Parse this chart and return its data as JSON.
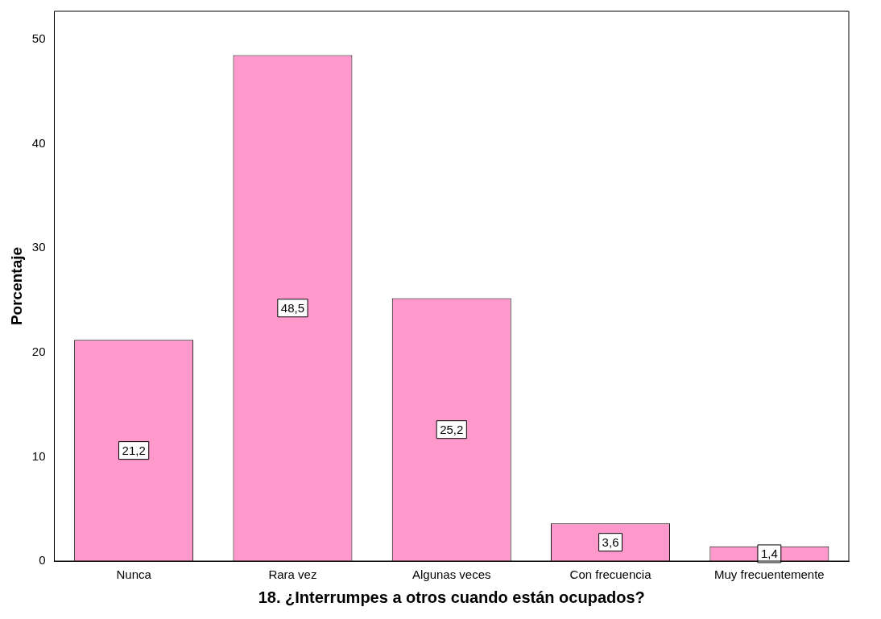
{
  "chart_data": {
    "type": "bar",
    "xlabel": "18. ¿Interrumpes a otros cuando están ocupados?",
    "ylabel": "Porcentaje",
    "categories": [
      "Nunca",
      "Rara vez",
      "Algunas veces",
      "Con frecuencia",
      "Muy frecuentemente"
    ],
    "values": [
      21.2,
      48.5,
      25.2,
      3.6,
      1.4
    ],
    "value_labels": [
      "21,2",
      "48,5",
      "25,2",
      "3,6",
      "1,4"
    ],
    "color": "#ff99cc",
    "ylim": [
      0,
      52.7
    ],
    "yticks": [
      0,
      10,
      20,
      30,
      40,
      50
    ]
  }
}
